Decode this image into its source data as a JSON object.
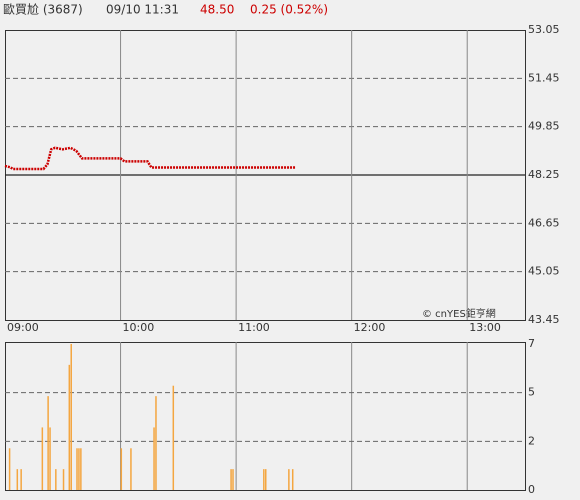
{
  "header": {
    "name": "歐買尬 (3687)",
    "time": "09/10 11:31",
    "price": "48.50",
    "change": "0.25 (0.52%)"
  },
  "watermark": "© cnYES鉅亨網",
  "chart_data": [
    {
      "type": "line",
      "color": "#cc0000",
      "x": [
        "09:00",
        "09:03",
        "09:04",
        "09:20",
        "09:22",
        "09:24",
        "09:26",
        "09:30",
        "09:34",
        "09:37",
        "09:40",
        "10:00",
        "10:02",
        "10:14",
        "10:16",
        "11:31"
      ],
      "values": [
        48.55,
        48.5,
        48.45,
        48.45,
        48.6,
        49.1,
        49.15,
        49.1,
        49.15,
        49.05,
        48.8,
        48.8,
        48.7,
        48.7,
        48.5,
        48.5
      ],
      "xlim": [
        "09:00",
        "13:30"
      ],
      "xticks": [
        "09:00",
        "10:00",
        "11:00",
        "12:00",
        "13:00"
      ],
      "ylim": [
        43.45,
        53.05
      ],
      "yticks": [
        43.45,
        45.05,
        46.65,
        48.25,
        49.85,
        51.45,
        53.05
      ],
      "prev_close": 48.25,
      "grid": true
    },
    {
      "type": "bar",
      "color": "#f4a640",
      "x": [
        "09:02",
        "09:06",
        "09:08",
        "09:19",
        "09:22",
        "09:23",
        "09:26",
        "09:30",
        "09:33",
        "09:34",
        "09:37",
        "09:38",
        "09:39",
        "10:00",
        "10:05",
        "10:17",
        "10:18",
        "10:27",
        "10:57",
        "10:58",
        "11:14",
        "11:15",
        "11:27",
        "11:29"
      ],
      "values": [
        2,
        1,
        1,
        3,
        4.5,
        3,
        1,
        1,
        6,
        7,
        2,
        2,
        2,
        2,
        2,
        3,
        4.5,
        5,
        1,
        1,
        1,
        1,
        1,
        1
      ],
      "xlim": [
        "09:00",
        "13:30"
      ],
      "ylim": [
        0,
        7
      ],
      "yticks": [
        0,
        {
          "value": 2.33,
          "label": "2"
        },
        {
          "value": 4.67,
          "label": "5"
        },
        7
      ],
      "grid": true
    }
  ]
}
